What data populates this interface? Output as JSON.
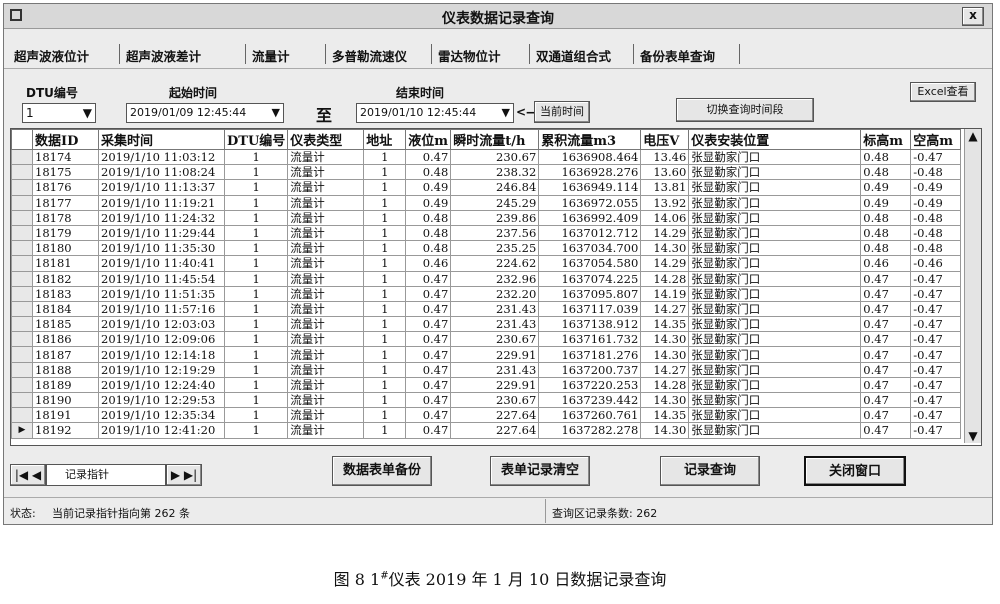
{
  "window": {
    "title": "仪表数据记录查询",
    "close": "x"
  },
  "tabs": [
    "超声波液位计",
    "超声波液差计",
    "流量计",
    "多普勒流速仪",
    "雷达物位计",
    "双通道组合式",
    "备份表单查询"
  ],
  "filters": {
    "dtu_label": "DTU编号",
    "dtu_value": "1",
    "start_label": "起始时间",
    "start_value": "2019/01/09   12:45:44",
    "to": "至",
    "end_label": "结束时间",
    "end_value": "2019/01/10   12:45:44",
    "arrow": "<—",
    "now_button": "当前时间",
    "switch_button": "切换查询时间段",
    "excel_button": "Excel查看"
  },
  "table": {
    "columns": [
      "数据ID",
      "采集时间",
      "DTU编号",
      "仪表类型",
      "地址",
      "液位m",
      "瞬时流量t/h",
      "累积流量m3",
      "电压V",
      "仪表安装位置",
      "标高m",
      "空高m"
    ],
    "rows": [
      [
        "18174",
        "2019/1/10 11:03:12",
        "1",
        "流量计",
        "1",
        "0.47",
        "230.67",
        "1636908.464",
        "13.46",
        "张显勤家门口",
        "0.48",
        "-0.47"
      ],
      [
        "18175",
        "2019/1/10 11:08:24",
        "1",
        "流量计",
        "1",
        "0.48",
        "238.32",
        "1636928.276",
        "13.60",
        "张显勤家门口",
        "0.48",
        "-0.48"
      ],
      [
        "18176",
        "2019/1/10 11:13:37",
        "1",
        "流量计",
        "1",
        "0.49",
        "246.84",
        "1636949.114",
        "13.81",
        "张显勤家门口",
        "0.49",
        "-0.49"
      ],
      [
        "18177",
        "2019/1/10 11:19:21",
        "1",
        "流量计",
        "1",
        "0.49",
        "245.29",
        "1636972.055",
        "13.92",
        "张显勤家门口",
        "0.49",
        "-0.49"
      ],
      [
        "18178",
        "2019/1/10 11:24:32",
        "1",
        "流量计",
        "1",
        "0.48",
        "239.86",
        "1636992.409",
        "14.06",
        "张显勤家门口",
        "0.48",
        "-0.48"
      ],
      [
        "18179",
        "2019/1/10 11:29:44",
        "1",
        "流量计",
        "1",
        "0.48",
        "237.56",
        "1637012.712",
        "14.29",
        "张显勤家门口",
        "0.48",
        "-0.48"
      ],
      [
        "18180",
        "2019/1/10 11:35:30",
        "1",
        "流量计",
        "1",
        "0.48",
        "235.25",
        "1637034.700",
        "14.30",
        "张显勤家门口",
        "0.48",
        "-0.48"
      ],
      [
        "18181",
        "2019/1/10 11:40:41",
        "1",
        "流量计",
        "1",
        "0.46",
        "224.62",
        "1637054.580",
        "14.29",
        "张显勤家门口",
        "0.46",
        "-0.46"
      ],
      [
        "18182",
        "2019/1/10 11:45:54",
        "1",
        "流量计",
        "1",
        "0.47",
        "232.96",
        "1637074.225",
        "14.28",
        "张显勤家门口",
        "0.47",
        "-0.47"
      ],
      [
        "18183",
        "2019/1/10 11:51:35",
        "1",
        "流量计",
        "1",
        "0.47",
        "232.20",
        "1637095.807",
        "14.19",
        "张显勤家门口",
        "0.47",
        "-0.47"
      ],
      [
        "18184",
        "2019/1/10 11:57:16",
        "1",
        "流量计",
        "1",
        "0.47",
        "231.43",
        "1637117.039",
        "14.27",
        "张显勤家门口",
        "0.47",
        "-0.47"
      ],
      [
        "18185",
        "2019/1/10 12:03:03",
        "1",
        "流量计",
        "1",
        "0.47",
        "231.43",
        "1637138.912",
        "14.35",
        "张显勤家门口",
        "0.47",
        "-0.47"
      ],
      [
        "18186",
        "2019/1/10 12:09:06",
        "1",
        "流量计",
        "1",
        "0.47",
        "230.67",
        "1637161.732",
        "14.30",
        "张显勤家门口",
        "0.47",
        "-0.47"
      ],
      [
        "18187",
        "2019/1/10 12:14:18",
        "1",
        "流量计",
        "1",
        "0.47",
        "229.91",
        "1637181.276",
        "14.30",
        "张显勤家门口",
        "0.47",
        "-0.47"
      ],
      [
        "18188",
        "2019/1/10 12:19:29",
        "1",
        "流量计",
        "1",
        "0.47",
        "231.43",
        "1637200.737",
        "14.27",
        "张显勤家门口",
        "0.47",
        "-0.47"
      ],
      [
        "18189",
        "2019/1/10 12:24:40",
        "1",
        "流量计",
        "1",
        "0.47",
        "229.91",
        "1637220.253",
        "14.28",
        "张显勤家门口",
        "0.47",
        "-0.47"
      ],
      [
        "18190",
        "2019/1/10 12:29:53",
        "1",
        "流量计",
        "1",
        "0.47",
        "230.67",
        "1637239.442",
        "14.30",
        "张显勤家门口",
        "0.47",
        "-0.47"
      ],
      [
        "18191",
        "2019/1/10 12:35:34",
        "1",
        "流量计",
        "1",
        "0.47",
        "227.64",
        "1637260.761",
        "14.35",
        "张显勤家门口",
        "0.47",
        "-0.47"
      ],
      [
        "18192",
        "2019/1/10 12:41:20",
        "1",
        "流量计",
        "1",
        "0.47",
        "227.64",
        "1637282.278",
        "14.30",
        "张显勤家门口",
        "0.47",
        "-0.47"
      ]
    ]
  },
  "footer": {
    "pointer_label": "记录指针",
    "buttons": [
      "数据表单备份",
      "表单记录清空",
      "记录查询",
      "关闭窗口"
    ]
  },
  "status": {
    "label": "状态:",
    "text": "当前记录指针指向第 262 条",
    "count": "查询区记录条数: 262"
  },
  "caption": {
    "prefix": "图 8   1",
    "sup": "#",
    "suffix": "仪表 2019 年 1 月 10 日数据记录查询"
  }
}
